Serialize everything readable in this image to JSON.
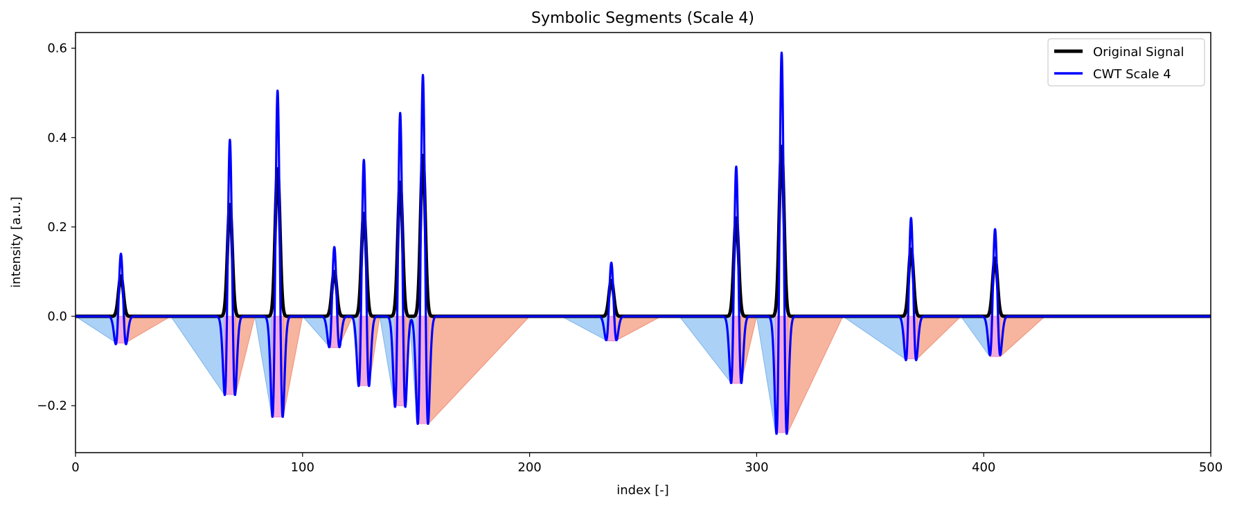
{
  "chart_data": {
    "type": "line",
    "title": "Symbolic Segments (Scale 4)",
    "xlabel": "index [-]",
    "ylabel": "intensity [a.u.]",
    "xlim": [
      0,
      500
    ],
    "ylim": [
      -0.305,
      0.635
    ],
    "xticks": [
      0,
      100,
      200,
      300,
      400,
      500
    ],
    "yticks": [
      -0.2,
      0.0,
      0.2,
      0.4,
      0.6
    ],
    "ytick_labels": [
      "−0.2",
      "0.0",
      "0.2",
      "0.4",
      "0.6"
    ],
    "grid": false,
    "legend_position": "top-right",
    "series": [
      {
        "name": "Original Signal",
        "color": "#000000"
      },
      {
        "name": "CWT Scale 4",
        "color": "#0000ff"
      }
    ],
    "peaks": [
      {
        "center": 20,
        "signal_height": 0.09,
        "cwt_height": 0.14,
        "trough": -0.06
      },
      {
        "center": 68,
        "signal_height": 0.25,
        "cwt_height": 0.395,
        "trough": -0.175
      },
      {
        "center": 89,
        "signal_height": 0.33,
        "cwt_height": 0.505,
        "trough": -0.225
      },
      {
        "center": 114,
        "signal_height": 0.1,
        "cwt_height": 0.155,
        "trough": -0.07
      },
      {
        "center": 127,
        "signal_height": 0.23,
        "cwt_height": 0.35,
        "trough": -0.155
      },
      {
        "center": 143,
        "signal_height": 0.3,
        "cwt_height": 0.455,
        "trough": -0.2
      },
      {
        "center": 153,
        "signal_height": 0.36,
        "cwt_height": 0.54,
        "trough": -0.24
      },
      {
        "center": 236,
        "signal_height": 0.08,
        "cwt_height": 0.12,
        "trough": -0.055
      },
      {
        "center": 291,
        "signal_height": 0.22,
        "cwt_height": 0.335,
        "trough": -0.15
      },
      {
        "center": 311,
        "signal_height": 0.38,
        "cwt_height": 0.59,
        "trough": -0.26
      },
      {
        "center": 368,
        "signal_height": 0.15,
        "cwt_height": 0.22,
        "trough": -0.095
      },
      {
        "center": 405,
        "signal_height": 0.13,
        "cwt_height": 0.195,
        "trough": -0.09
      }
    ],
    "segment_colors": {
      "rise": "#a6cff7",
      "fall": "#f7b09a",
      "core": "#f2a2d8"
    },
    "segments": [
      {
        "rise_start": 0,
        "left_min": 18.2,
        "right_min": 21.8,
        "fall_end": 42
      },
      {
        "rise_start": 42,
        "left_min": 65.5,
        "right_min": 70.5,
        "fall_end": 79
      },
      {
        "rise_start": 79,
        "left_min": 86.5,
        "right_min": 91.5,
        "fall_end": 100
      },
      {
        "rise_start": 100,
        "left_min": 112.2,
        "right_min": 115.8,
        "fall_end": 122
      },
      {
        "rise_start": 122,
        "left_min": 124.7,
        "right_min": 129.3,
        "fall_end": 134
      },
      {
        "rise_start": 134,
        "left_min": 140.6,
        "right_min": 145.4,
        "fall_end": 147
      },
      {
        "rise_start": 147,
        "left_min": 150.5,
        "right_min": 155.5,
        "fall_end": 200
      },
      {
        "rise_start": 214,
        "left_min": 234.3,
        "right_min": 237.7,
        "fall_end": 258
      },
      {
        "rise_start": 266,
        "left_min": 288.9,
        "right_min": 293.1,
        "fall_end": 300
      },
      {
        "rise_start": 300,
        "left_min": 308.3,
        "right_min": 313.7,
        "fall_end": 338
      },
      {
        "rise_start": 338,
        "left_min": 365.3,
        "right_min": 370.7,
        "fall_end": 390
      },
      {
        "rise_start": 390,
        "left_min": 402.7,
        "right_min": 407.3,
        "fall_end": 427
      }
    ]
  }
}
